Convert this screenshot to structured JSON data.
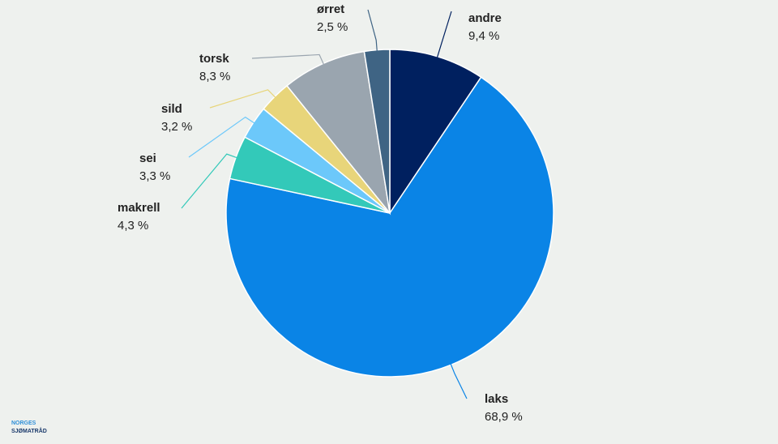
{
  "chart_data": {
    "type": "pie",
    "categories": [
      "andre",
      "laks",
      "makrell",
      "sei",
      "sild",
      "torsk",
      "ørret"
    ],
    "values": [
      9.4,
      68.9,
      4.3,
      3.3,
      3.2,
      8.3,
      2.5
    ],
    "value_labels": [
      "9,4 %",
      "68,9 %",
      "4,3 %",
      "3,3 %",
      "3,2 %",
      "8,3 %",
      "2,5 %"
    ],
    "colors": [
      "#00205f",
      "#0a84e6",
      "#33c9b9",
      "#6cc8fa",
      "#e8d57a",
      "#9aa5af",
      "#3f6484"
    ]
  },
  "logo": [
    "NORGES",
    "SJØMATRÅD"
  ]
}
